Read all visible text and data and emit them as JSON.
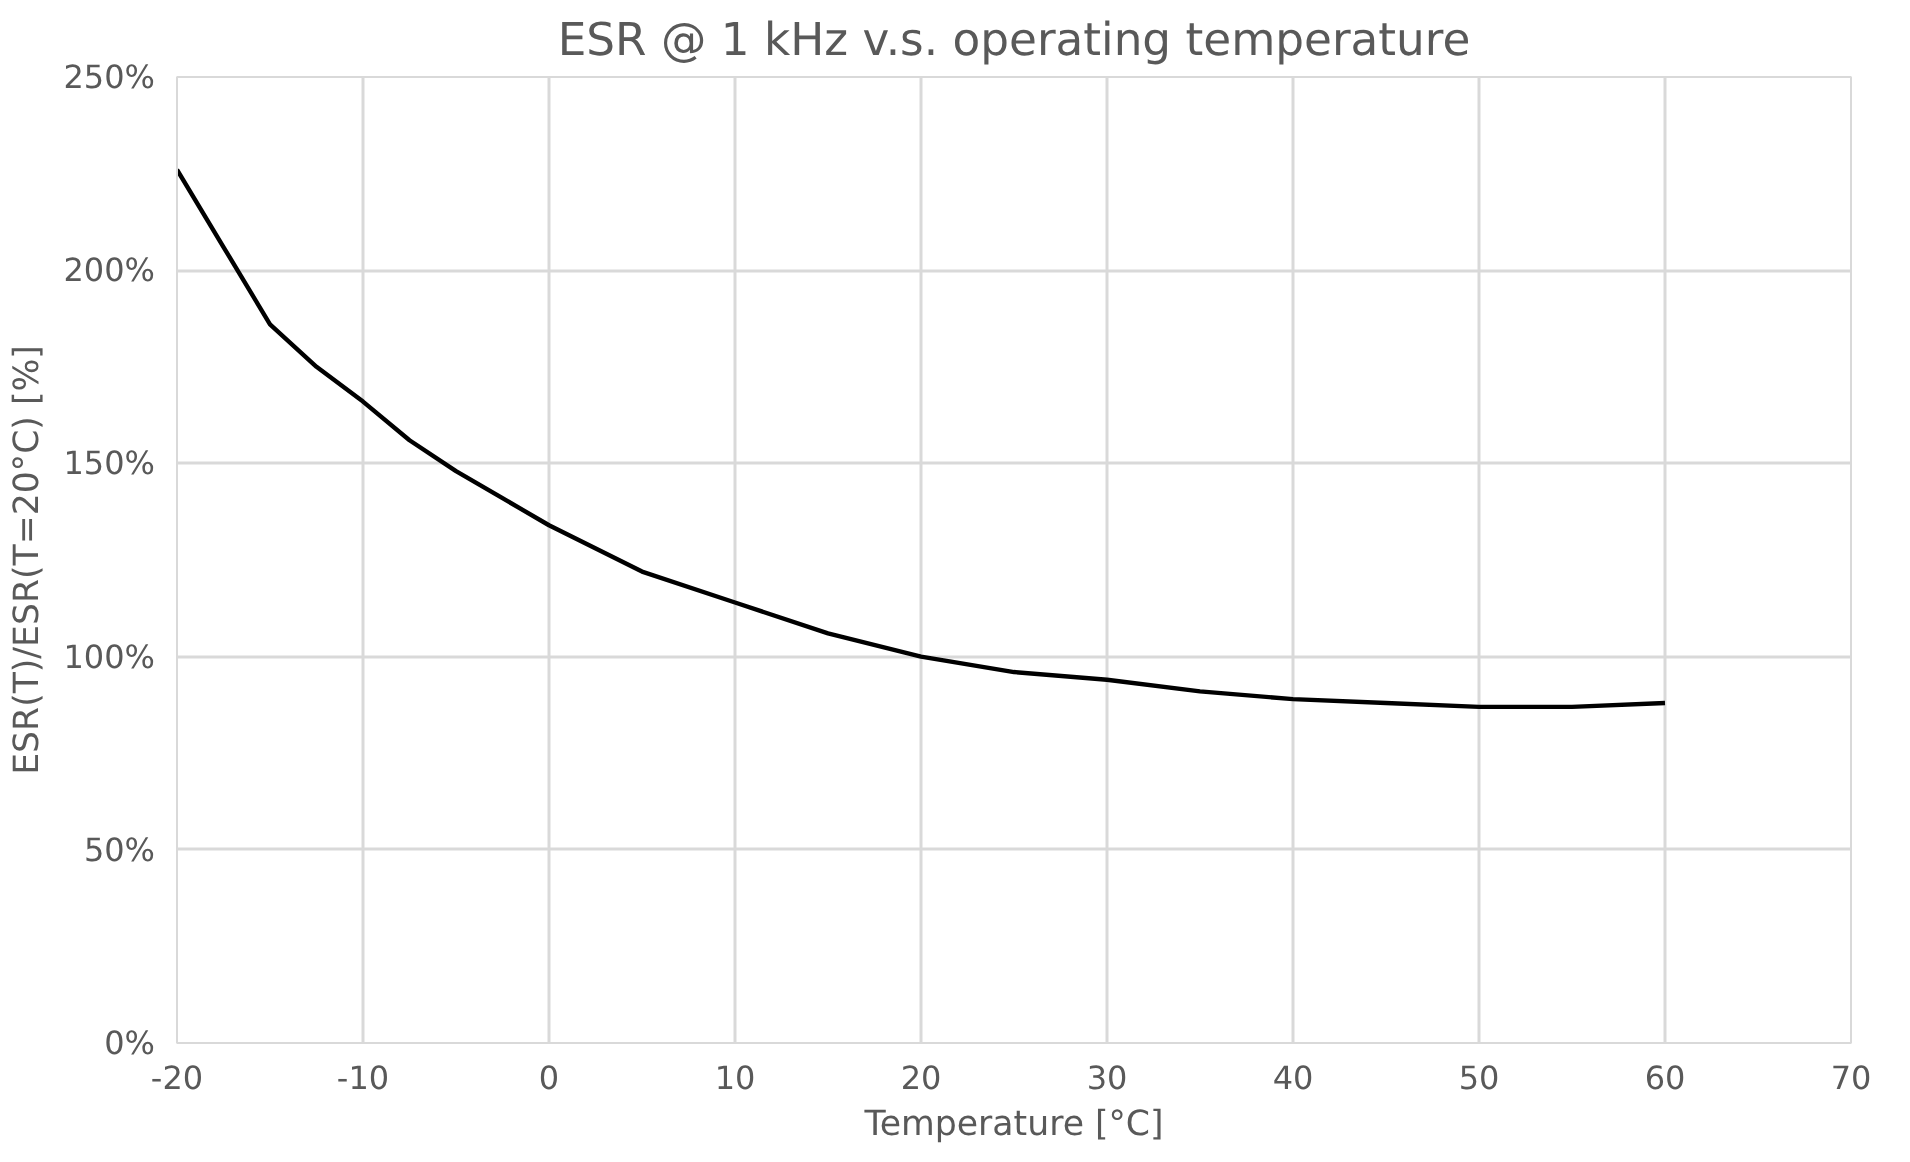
{
  "chart_data": {
    "type": "line",
    "title": "ESR @ 1 kHz v.s. operating temperature",
    "xlabel": "Temperature [°C]",
    "ylabel": "ESR(T)/ESR(T=20°C) [%]",
    "series": [
      {
        "color": "#000000",
        "x": [
          -20,
          -17.5,
          -15,
          -12.5,
          -10,
          -7.5,
          -5,
          -2.5,
          0,
          5,
          10,
          15,
          20,
          25,
          30,
          35,
          40,
          45,
          50,
          55,
          60
        ],
        "values": [
          226,
          206,
          186,
          175,
          166,
          156,
          148,
          141,
          134,
          122,
          114,
          106,
          100,
          96,
          94,
          91,
          89,
          88,
          87,
          87,
          88
        ]
      }
    ],
    "xlim": [
      -20,
      70
    ],
    "xticks": [
      -20,
      -10,
      0,
      10,
      20,
      30,
      40,
      50,
      60,
      70
    ],
    "ylim": [
      0,
      250
    ],
    "yticks": [
      {
        "value": 0,
        "label": "0%"
      },
      {
        "value": 50,
        "label": "50%"
      },
      {
        "value": 100,
        "label": "100%"
      },
      {
        "value": 150,
        "label": "150%"
      },
      {
        "value": 200,
        "label": "200%"
      },
      {
        "value": 250,
        "label": "250%"
      }
    ],
    "grid": true,
    "line_style": "solid"
  }
}
